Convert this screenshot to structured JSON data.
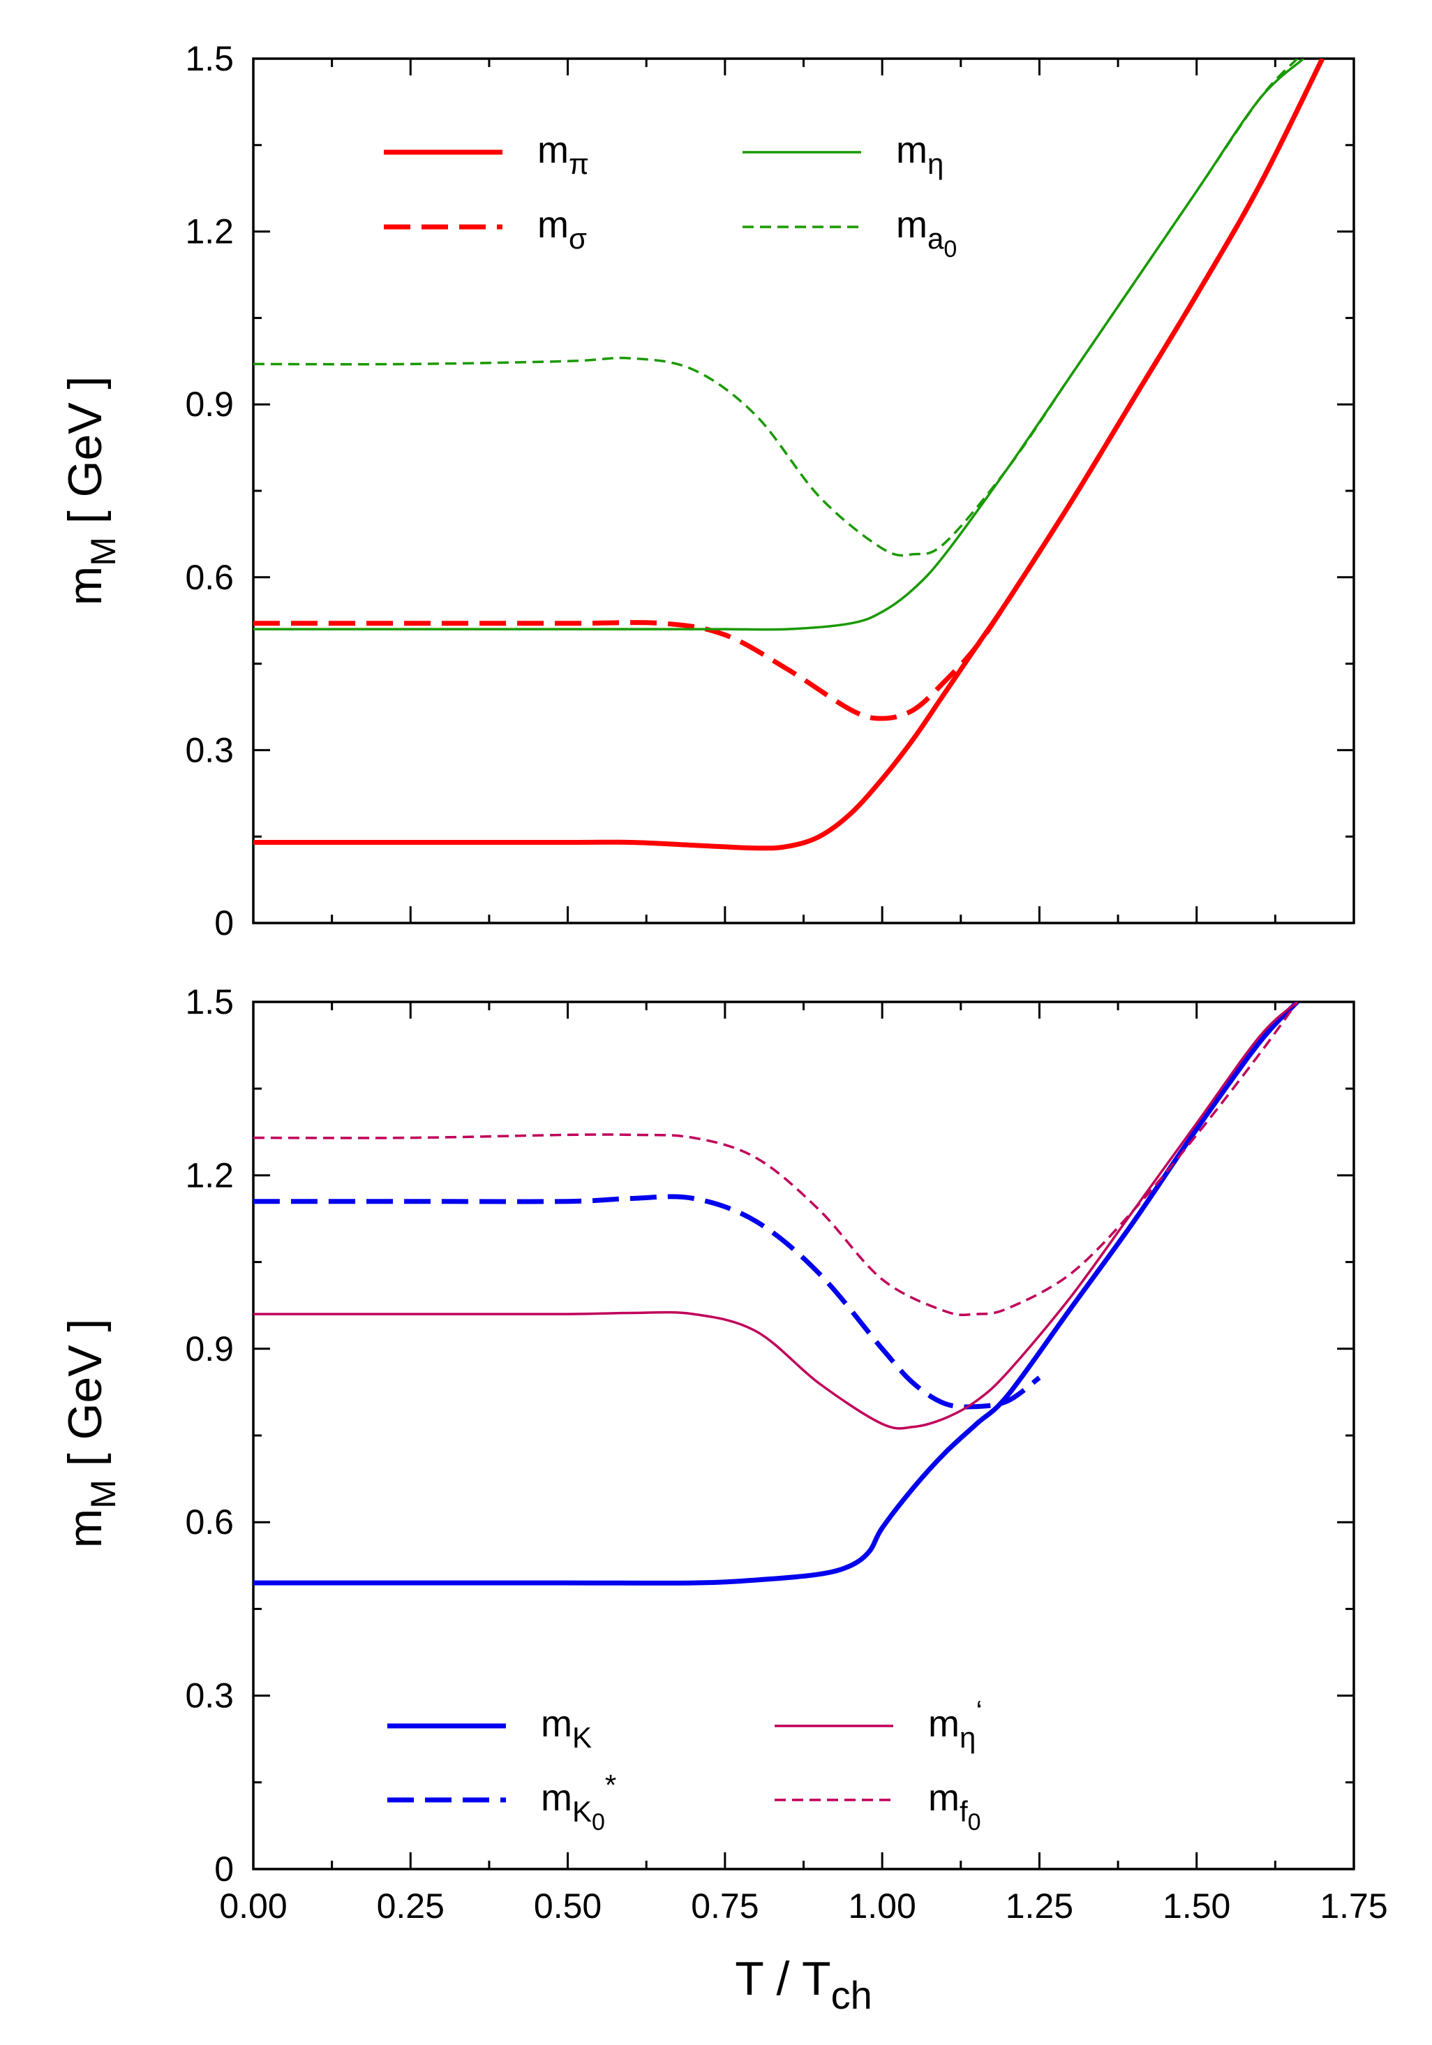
{
  "colors": {
    "red": "#ff0000",
    "green": "#1a9900",
    "blue": "#0000ee",
    "magenta": "#c0005a"
  },
  "chart_data": [
    {
      "type": "line",
      "panel": "top",
      "title": "",
      "xlabel": "T / T",
      "xlabel_sub": "ch",
      "ylabel": "m",
      "ylabel_sub": "M",
      "ylabel_unit": "[ GeV ]",
      "xlim": [
        0,
        1.75
      ],
      "ylim": [
        0,
        1.5
      ],
      "xticks": [
        0,
        0.25,
        0.5,
        0.75,
        1.0,
        1.25,
        1.5,
        1.75
      ],
      "xtick_labels": [
        "0.00",
        "0.25",
        "0.50",
        "0.75",
        "1.00",
        "1.25",
        "1.50",
        "1.75"
      ],
      "yticks": [
        0,
        0.3,
        0.6,
        0.9,
        1.2,
        1.5
      ],
      "ytick_labels": [
        "0",
        "0.3",
        "0.6",
        "0.9",
        "1.2",
        "1.5"
      ],
      "legend_position": "top",
      "series": [
        {
          "name": "m_π",
          "label": "m",
          "sub": "π",
          "color": "red",
          "style": "solid",
          "weight": "thick",
          "x": [
            0,
            0.25,
            0.5,
            0.6,
            0.7,
            0.8,
            0.85,
            0.9,
            0.95,
            1.0,
            1.05,
            1.1,
            1.15,
            1.2,
            1.3,
            1.4,
            1.5,
            1.6,
            1.7
          ],
          "y": [
            0.14,
            0.14,
            0.14,
            0.14,
            0.135,
            0.13,
            0.133,
            0.15,
            0.19,
            0.25,
            0.32,
            0.4,
            0.48,
            0.56,
            0.73,
            0.91,
            1.09,
            1.28,
            1.5
          ]
        },
        {
          "name": "m_σ",
          "label": "m",
          "sub": "σ",
          "color": "red",
          "style": "dashed",
          "weight": "thick",
          "x": [
            0,
            0.25,
            0.5,
            0.65,
            0.75,
            0.85,
            0.95,
            1.0,
            1.05,
            1.1,
            1.15,
            1.2,
            1.3,
            1.4,
            1.5,
            1.6,
            1.7
          ],
          "y": [
            0.52,
            0.52,
            0.52,
            0.52,
            0.5,
            0.44,
            0.37,
            0.355,
            0.37,
            0.42,
            0.48,
            0.56,
            0.73,
            0.91,
            1.09,
            1.28,
            1.5
          ]
        },
        {
          "name": "m_η",
          "label": "m",
          "sub": "η",
          "color": "green",
          "style": "solid",
          "weight": "thin",
          "x": [
            0,
            0.25,
            0.5,
            0.65,
            0.75,
            0.85,
            0.95,
            1.0,
            1.05,
            1.1,
            1.2,
            1.3,
            1.4,
            1.5,
            1.6,
            1.67
          ],
          "y": [
            0.51,
            0.51,
            0.51,
            0.51,
            0.51,
            0.51,
            0.52,
            0.54,
            0.58,
            0.64,
            0.79,
            0.95,
            1.11,
            1.27,
            1.43,
            1.5
          ]
        },
        {
          "name": "m_a0",
          "label": "m",
          "sub": "a",
          "subsub": "0",
          "color": "green",
          "style": "dashed",
          "weight": "thin",
          "x": [
            0,
            0.25,
            0.5,
            0.6,
            0.7,
            0.8,
            0.9,
            1.0,
            1.05,
            1.1,
            1.2,
            1.3,
            1.4,
            1.5,
            1.6,
            1.66
          ],
          "y": [
            0.97,
            0.97,
            0.975,
            0.98,
            0.96,
            0.88,
            0.74,
            0.65,
            0.64,
            0.66,
            0.79,
            0.95,
            1.11,
            1.27,
            1.43,
            1.5
          ]
        }
      ]
    },
    {
      "type": "line",
      "panel": "bottom",
      "title": "",
      "xlabel": "T / T",
      "xlabel_sub": "ch",
      "ylabel": "m",
      "ylabel_sub": "M",
      "ylabel_unit": "[ GeV ]",
      "xlim": [
        0,
        1.75
      ],
      "ylim": [
        0,
        1.5
      ],
      "xticks": [
        0,
        0.25,
        0.5,
        0.75,
        1.0,
        1.25,
        1.5,
        1.75
      ],
      "xtick_labels": [
        "0.00",
        "0.25",
        "0.50",
        "0.75",
        "1.00",
        "1.25",
        "1.50",
        "1.75"
      ],
      "yticks": [
        0,
        0.3,
        0.6,
        0.9,
        1.2,
        1.5
      ],
      "ytick_labels": [
        "0",
        "0.3",
        "0.6",
        "0.9",
        "1.2",
        "1.5"
      ],
      "legend_position": "bottom",
      "series": [
        {
          "name": "m_K",
          "label": "m",
          "sub": "K",
          "color": "blue",
          "style": "solid",
          "weight": "thick",
          "x": [
            0,
            0.25,
            0.5,
            0.7,
            0.8,
            0.9,
            0.95,
            0.98,
            1.0,
            1.05,
            1.1,
            1.15,
            1.2,
            1.3,
            1.4,
            1.5,
            1.6,
            1.66
          ],
          "y": [
            0.495,
            0.495,
            0.495,
            0.495,
            0.5,
            0.51,
            0.525,
            0.55,
            0.59,
            0.66,
            0.72,
            0.77,
            0.82,
            0.97,
            1.12,
            1.28,
            1.43,
            1.5
          ]
        },
        {
          "name": "m_K0*",
          "label": "m",
          "sub": "K",
          "subsub": "0",
          "sup": "*",
          "color": "blue",
          "style": "dashed",
          "weight": "thick",
          "x": [
            0,
            0.25,
            0.5,
            0.6,
            0.7,
            0.8,
            0.9,
            1.0,
            1.05,
            1.1,
            1.15,
            1.2,
            1.25
          ],
          "y": [
            1.155,
            1.155,
            1.155,
            1.16,
            1.16,
            1.12,
            1.03,
            0.9,
            0.84,
            0.805,
            0.8,
            0.81,
            0.85
          ]
        },
        {
          "name": "m_η'",
          "label": "m",
          "sub": "η",
          "sup": "‘",
          "color": "magenta",
          "style": "solid",
          "weight": "thin",
          "x": [
            0,
            0.25,
            0.5,
            0.6,
            0.7,
            0.8,
            0.9,
            1.0,
            1.05,
            1.1,
            1.15,
            1.2,
            1.3,
            1.4,
            1.5,
            1.6,
            1.66
          ],
          "y": [
            0.96,
            0.96,
            0.96,
            0.962,
            0.96,
            0.93,
            0.84,
            0.77,
            0.765,
            0.78,
            0.81,
            0.86,
            0.99,
            1.14,
            1.29,
            1.44,
            1.5
          ]
        },
        {
          "name": "m_f0",
          "label": "m",
          "sub": "f",
          "subsub": "0",
          "color": "magenta",
          "style": "dashed",
          "weight": "thin",
          "x": [
            0,
            0.25,
            0.5,
            0.6,
            0.7,
            0.8,
            0.9,
            1.0,
            1.1,
            1.15,
            1.2,
            1.3,
            1.4,
            1.5,
            1.6,
            1.66
          ],
          "y": [
            1.265,
            1.265,
            1.27,
            1.27,
            1.265,
            1.23,
            1.14,
            1.02,
            0.965,
            0.96,
            0.97,
            1.03,
            1.14,
            1.27,
            1.41,
            1.5
          ]
        }
      ]
    }
  ]
}
